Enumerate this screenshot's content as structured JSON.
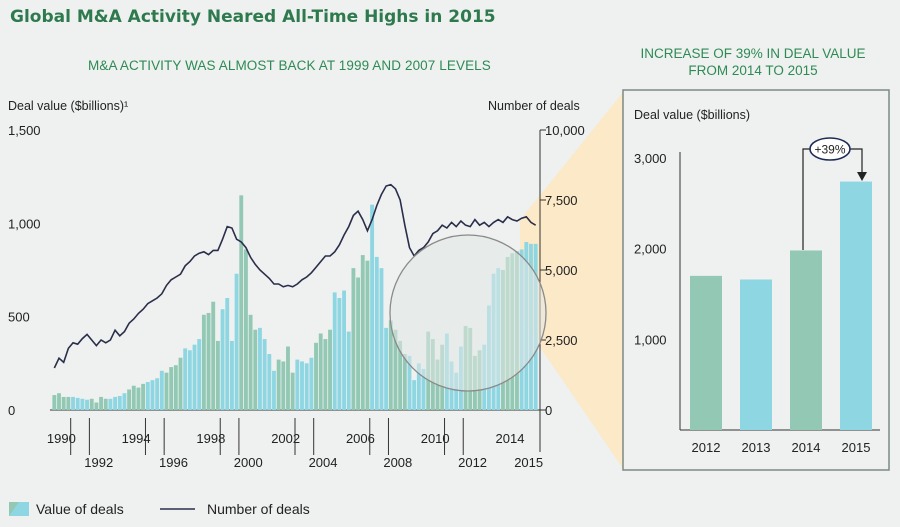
{
  "title": "Global M&A Activity Neared All-Time Highs in 2015",
  "left_subtitle": "M&A ACTIVITY WAS ALMOST BACK AT 1999 AND 2007 LEVELS",
  "right_subtitle": "INCREASE OF 39% IN DEAL VALUE FROM 2014 TO 2015",
  "legend": {
    "value_label": "Value of deals",
    "number_label": "Number of deals"
  },
  "colors": {
    "title": "#2e7a4e",
    "subtitle": "#2e8a55",
    "green": "#93c9b4",
    "blue": "#8fd6e3",
    "line": "#2b2e4a",
    "panel_border": "#7b8a84",
    "zoom_fill": "#fbe9c8"
  },
  "chart_data": [
    {
      "type": "bar+line",
      "ylabel_left": "Deal value ($billions)¹",
      "ylabel_right": "Number of deals",
      "yticks_left": [
        "1,500",
        "1,000",
        "500",
        "0"
      ],
      "yticks_right": [
        "10,000",
        "7,500",
        "5,000",
        "2,500",
        "0"
      ],
      "ylim_left": [
        0,
        1500
      ],
      "ylim_right": [
        0,
        10000
      ],
      "xticks_top": [
        "1990",
        "1994",
        "1998",
        "2002",
        "2006",
        "2010",
        "2014"
      ],
      "xticks_bottom": [
        "1992",
        "1996",
        "2000",
        "2004",
        "2008",
        "2012",
        "2015"
      ],
      "bar_series": {
        "name": "Value of deals",
        "colors_alternate_by_year": [
          "green",
          "blue"
        ],
        "years": [
          "1990",
          "1991",
          "1992",
          "1993",
          "1994",
          "1995",
          "1996",
          "1997",
          "1998",
          "1999",
          "2000",
          "2001",
          "2002",
          "2003",
          "2004",
          "2005",
          "2006",
          "2007",
          "2008",
          "2009",
          "2010",
          "2011",
          "2012",
          "2013",
          "2014",
          "2015"
        ],
        "quarterly_values": [
          [
            80,
            90,
            70,
            70
          ],
          [
            70,
            65,
            60,
            55
          ],
          [
            60,
            40,
            70,
            60
          ],
          [
            60,
            70,
            75,
            90
          ],
          [
            110,
            130,
            120,
            140
          ],
          [
            150,
            160,
            170,
            210
          ],
          [
            200,
            230,
            240,
            280
          ],
          [
            330,
            320,
            350,
            380
          ],
          [
            510,
            520,
            580,
            370
          ],
          [
            540,
            600,
            370,
            730
          ],
          [
            1150,
            860,
            510,
            430
          ],
          [
            440,
            380,
            300,
            210
          ],
          [
            270,
            260,
            340,
            200
          ],
          [
            270,
            260,
            250,
            280
          ],
          [
            360,
            410,
            380,
            430
          ],
          [
            630,
            600,
            640,
            420
          ],
          [
            760,
            710,
            830,
            800
          ],
          [
            1100,
            820,
            760,
            440
          ],
          [
            480,
            430,
            370,
            300
          ],
          [
            290,
            160,
            250,
            220
          ],
          [
            420,
            380,
            270,
            350
          ],
          [
            410,
            260,
            200,
            340
          ],
          [
            450,
            440,
            290,
            320
          ],
          [
            350,
            560,
            730,
            760
          ],
          [
            750,
            820,
            840,
            850
          ],
          [
            860,
            900,
            890,
            890
          ]
        ]
      },
      "line_series": {
        "name": "Number of deals",
        "start_year": "1990",
        "step": "quarter",
        "values": [
          1500,
          1850,
          1700,
          2200,
          2400,
          2350,
          2550,
          2700,
          2500,
          2300,
          2500,
          2400,
          2500,
          2850,
          2650,
          2800,
          3100,
          3250,
          3450,
          3600,
          3800,
          3900,
          4000,
          4150,
          4450,
          4650,
          4750,
          4850,
          5150,
          5300,
          5500,
          5600,
          5650,
          5550,
          5700,
          5700,
          6100,
          6550,
          6500,
          6100,
          6000,
          5800,
          5450,
          5200,
          5000,
          4850,
          4700,
          4500,
          4500,
          4400,
          4450,
          4400,
          4500,
          4650,
          4750,
          4900,
          5100,
          5300,
          5500,
          5500,
          5650,
          5900,
          6250,
          6550,
          6950,
          7100,
          6800,
          6400,
          6800,
          7300,
          7700,
          8000,
          8050,
          7900,
          7500,
          6600,
          5800,
          5500,
          5700,
          5800,
          6000,
          6300,
          6400,
          6600,
          6500,
          6700,
          6550,
          6750,
          6600,
          6550,
          6800,
          6600,
          6700,
          6550,
          6700,
          6800,
          6700,
          6900,
          6800,
          6750,
          6850,
          6900,
          6700,
          6600
        ]
      }
    },
    {
      "type": "bar",
      "ylabel": "Deal value ($billions)",
      "yticks": [
        "3,000",
        "2,000",
        "1,000"
      ],
      "ylim": [
        0,
        3000
      ],
      "categories": [
        "2012",
        "2013",
        "2014",
        "2015"
      ],
      "values": [
        1700,
        1660,
        1980,
        2740
      ],
      "bar_colors": [
        "green",
        "blue",
        "green",
        "blue"
      ],
      "annotation": "+39%"
    }
  ]
}
